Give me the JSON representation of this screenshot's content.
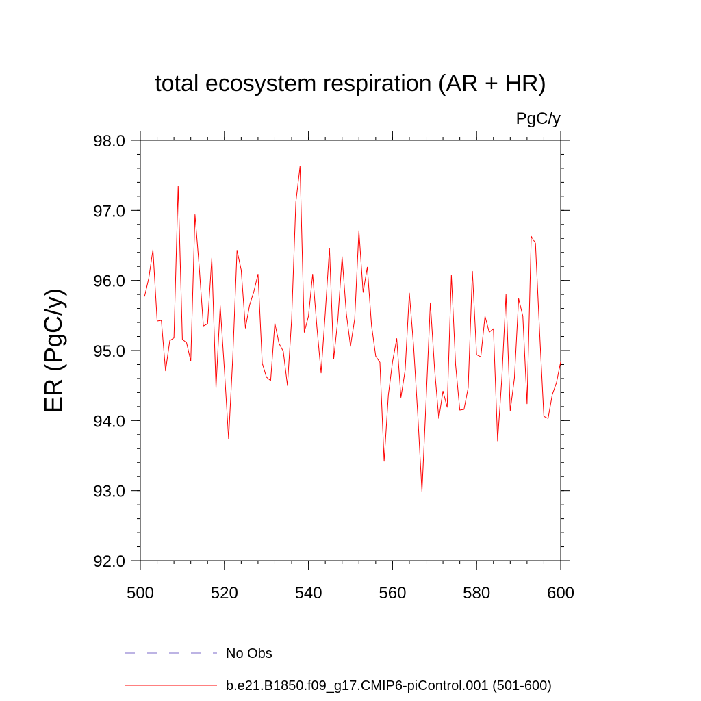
{
  "chart_data": {
    "type": "line",
    "title": "total ecosystem respiration (AR + HR)",
    "units": "PgC/y",
    "xlabel": "",
    "ylabel": "ER  (PgC/y)",
    "xlim": [
      500,
      600
    ],
    "ylim": [
      92.0,
      98.0
    ],
    "x_ticks": [
      500,
      520,
      540,
      560,
      580,
      600
    ],
    "x_tick_labels": [
      "500",
      "520",
      "540",
      "560",
      "580",
      "600"
    ],
    "y_ticks": [
      92.0,
      93.0,
      94.0,
      95.0,
      96.0,
      97.0,
      98.0
    ],
    "y_tick_labels": [
      "92.0",
      "93.0",
      "94.0",
      "95.0",
      "96.0",
      "97.0",
      "98.0"
    ],
    "grid": false,
    "legend": [
      {
        "name": "No Obs",
        "color": "#7b68c8",
        "style": "dashed"
      },
      {
        "name": "b.e21.B1850.f09_g17.CMIP6-piControl.001 (501-600)",
        "color": "#ff0000",
        "style": "solid"
      }
    ],
    "series": [
      {
        "name": "b.e21.B1850.f09_g17.CMIP6-piControl.001 (501-600)",
        "color": "#ff0000",
        "x_start": 501,
        "x_step": 1,
        "values": [
          95.77,
          96.03,
          96.44,
          95.42,
          95.43,
          94.71,
          95.14,
          95.18,
          97.35,
          95.16,
          95.11,
          94.85,
          96.94,
          96.2,
          95.35,
          95.38,
          96.32,
          94.46,
          95.64,
          94.73,
          93.74,
          94.91,
          96.43,
          96.15,
          95.32,
          95.65,
          95.84,
          96.09,
          94.82,
          94.62,
          94.57,
          95.39,
          95.1,
          94.99,
          94.5,
          95.45,
          97.12,
          97.63,
          95.26,
          95.49,
          96.09,
          95.34,
          94.68,
          95.54,
          96.46,
          94.88,
          95.45,
          96.34,
          95.53,
          95.06,
          95.45,
          96.71,
          95.83,
          96.19,
          95.36,
          94.92,
          94.83,
          93.42,
          94.36,
          94.84,
          95.17,
          94.33,
          94.72,
          95.82,
          95.07,
          94.09,
          92.98,
          94.31,
          95.68,
          94.74,
          94.03,
          94.42,
          94.19,
          96.08,
          94.8,
          94.15,
          94.16,
          94.47,
          96.13,
          94.94,
          94.91,
          95.49,
          95.26,
          95.31,
          93.71,
          94.6,
          95.8,
          94.14,
          94.61,
          95.74,
          95.49,
          94.24,
          96.63,
          96.53,
          95.25,
          94.06,
          94.03,
          94.37,
          94.54,
          94.84
        ]
      }
    ]
  }
}
